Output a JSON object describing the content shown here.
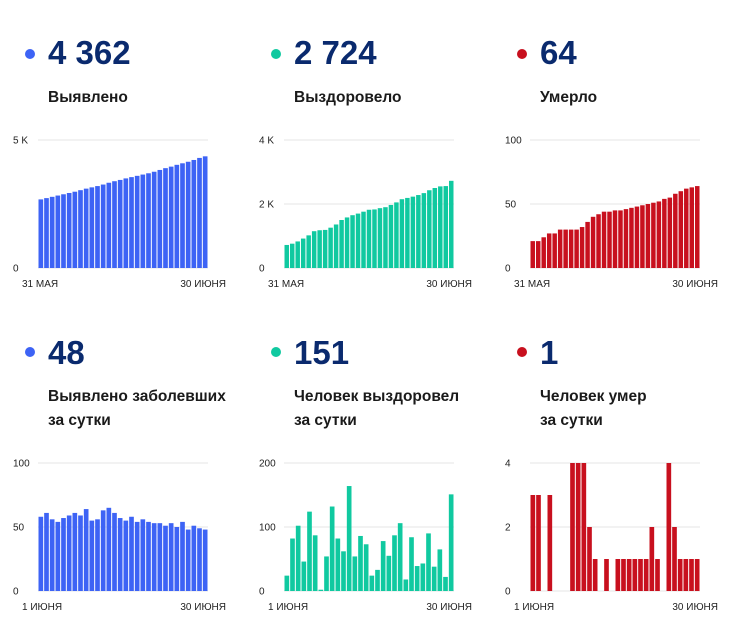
{
  "colors": {
    "blue": "#3d63f5",
    "green": "#10c9a0",
    "red": "#c8101e",
    "grid": "#e6e6e6",
    "value": "#0a2a6e"
  },
  "panels": [
    {
      "value": "4 362",
      "label": [
        "Выявлено"
      ],
      "color": "#3d63f5",
      "ymax": 5000,
      "yticks": [
        {
          "v": 0,
          "t": "0"
        },
        {
          "v": 5000,
          "t": "5 K"
        }
      ],
      "xlabels": [
        "31 МАЯ",
        "30 ИЮНЯ"
      ]
    },
    {
      "value": "2 724",
      "label": [
        "Выздоровело"
      ],
      "color": "#10c9a0",
      "ymax": 4000,
      "yticks": [
        {
          "v": 0,
          "t": "0"
        },
        {
          "v": 2000,
          "t": "2 K"
        },
        {
          "v": 4000,
          "t": "4 K"
        }
      ],
      "xlabels": [
        "31 МАЯ",
        "30 ИЮНЯ"
      ]
    },
    {
      "value": "64",
      "label": [
        "Умерло"
      ],
      "color": "#c8101e",
      "ymax": 100,
      "yticks": [
        {
          "v": 0,
          "t": "0"
        },
        {
          "v": 50,
          "t": "50"
        },
        {
          "v": 100,
          "t": "100"
        }
      ],
      "xlabels": [
        "31 МАЯ",
        "30 ИЮНЯ"
      ]
    },
    {
      "value": "48",
      "label": [
        "Выявлено заболевших",
        "за сутки"
      ],
      "color": "#3d63f5",
      "ymax": 100,
      "yticks": [
        {
          "v": 0,
          "t": "0"
        },
        {
          "v": 50,
          "t": "50"
        },
        {
          "v": 100,
          "t": "100"
        }
      ],
      "xlabels": [
        "1 ИЮНЯ",
        "30 ИЮНЯ"
      ]
    },
    {
      "value": "151",
      "label": [
        "Человек выздоровел",
        "за сутки"
      ],
      "color": "#10c9a0",
      "ymax": 200,
      "yticks": [
        {
          "v": 0,
          "t": "0"
        },
        {
          "v": 100,
          "t": "100"
        },
        {
          "v": 200,
          "t": "200"
        }
      ],
      "xlabels": [
        "1 ИЮНЯ",
        "30 ИЮНЯ"
      ]
    },
    {
      "value": "1",
      "label": [
        "Человек умер",
        "за сутки"
      ],
      "color": "#c8101e",
      "ymax": 4,
      "yticks": [
        {
          "v": 0,
          "t": "0"
        },
        {
          "v": 2,
          "t": "2"
        },
        {
          "v": 4,
          "t": "4"
        }
      ],
      "xlabels": [
        "1 ИЮНЯ",
        "30 ИЮНЯ"
      ]
    }
  ],
  "chart_data": [
    {
      "type": "bar",
      "ylim": [
        0,
        5000
      ],
      "series": [
        {
          "values": [
            2680,
            2730,
            2780,
            2830,
            2880,
            2930,
            2980,
            3040,
            3100,
            3150,
            3200,
            3260,
            3330,
            3390,
            3440,
            3500,
            3550,
            3600,
            3650,
            3700,
            3760,
            3830,
            3900,
            3960,
            4030,
            4090,
            4150,
            4220,
            4300,
            4362
          ]
        }
      ]
    },
    {
      "type": "bar",
      "ylim": [
        0,
        4000
      ],
      "series": [
        {
          "values": [
            720,
            760,
            830,
            920,
            1020,
            1150,
            1180,
            1190,
            1260,
            1360,
            1500,
            1580,
            1650,
            1700,
            1760,
            1820,
            1830,
            1870,
            1900,
            1970,
            2050,
            2150,
            2190,
            2230,
            2280,
            2340,
            2430,
            2500,
            2550,
            2560,
            2724
          ]
        }
      ]
    },
    {
      "type": "bar",
      "ylim": [
        0,
        100
      ],
      "series": [
        {
          "values": [
            21,
            21,
            24,
            27,
            27,
            30,
            30,
            30,
            30,
            32,
            36,
            40,
            42,
            44,
            44,
            45,
            45,
            46,
            47,
            48,
            49,
            50,
            51,
            52,
            54,
            55,
            58,
            60,
            62,
            63,
            64
          ]
        }
      ]
    },
    {
      "type": "bar",
      "ylim": [
        0,
        100
      ],
      "series": [
        {
          "values": [
            58,
            61,
            56,
            54,
            57,
            59,
            61,
            59,
            64,
            55,
            56,
            63,
            65,
            61,
            57,
            55,
            58,
            54,
            56,
            54,
            53,
            53,
            51,
            53,
            50,
            54,
            48,
            51,
            49,
            48
          ]
        }
      ]
    },
    {
      "type": "bar",
      "ylim": [
        0,
        200
      ],
      "series": [
        {
          "values": [
            24,
            82,
            102,
            46,
            124,
            87,
            2,
            54,
            132,
            82,
            62,
            164,
            54,
            86,
            73,
            24,
            33,
            78,
            55,
            87,
            106,
            18,
            84,
            39,
            43,
            90,
            38,
            65,
            22,
            151
          ]
        }
      ]
    },
    {
      "type": "bar",
      "ylim": [
        0,
        4
      ],
      "series": [
        {
          "values": [
            3,
            3,
            0,
            3,
            0,
            0,
            0,
            4,
            4,
            4,
            2,
            1,
            0,
            1,
            0,
            1,
            1,
            1,
            1,
            1,
            1,
            2,
            1,
            0,
            4,
            2,
            1,
            1,
            1,
            1
          ]
        }
      ]
    }
  ]
}
